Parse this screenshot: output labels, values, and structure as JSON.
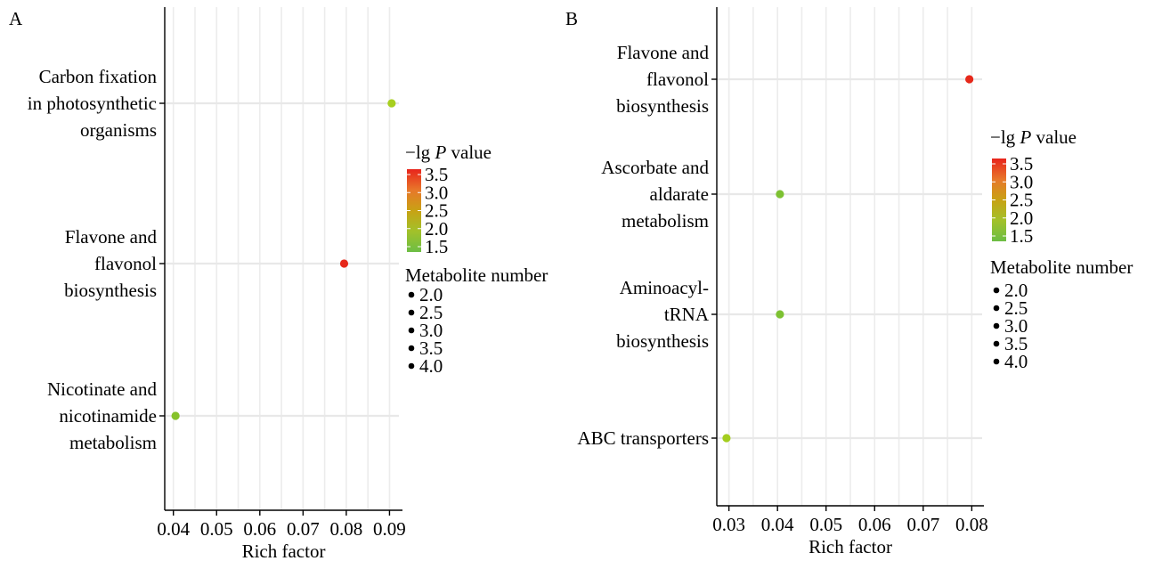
{
  "chart_data": [
    {
      "type": "scatter",
      "panel_label": "A",
      "title": "",
      "xlabel": "Rich factor",
      "ylabel": "",
      "xlim": [
        0.038,
        0.093
      ],
      "xticks": [
        0.04,
        0.05,
        0.06,
        0.07,
        0.08,
        0.09
      ],
      "xtick_labels": [
        "0.04",
        "0.05",
        "0.06",
        "0.07",
        "0.08",
        "0.09"
      ],
      "categories": [
        [
          "Carbon fixation",
          "in photosynthetic",
          "organisms"
        ],
        [
          "Flavone and",
          "flavonol",
          "biosynthesis"
        ],
        [
          "Nicotinate and",
          "nicotinamide",
          "metabolism"
        ]
      ],
      "points": [
        {
          "category": 0,
          "x": 0.0905,
          "neg_lg_p": 2.05,
          "color": "#a7cf1f"
        },
        {
          "category": 1,
          "x": 0.0795,
          "neg_lg_p": 3.6,
          "color": "#e6281a"
        },
        {
          "category": 2,
          "x": 0.0405,
          "neg_lg_p": 1.7,
          "color": "#86c22a"
        }
      ],
      "grid": true,
      "colorbar": {
        "title_prefix": "−lg ",
        "title_italic": "P",
        "title_suffix": " value",
        "ticks": [
          "3.5",
          "3.0",
          "2.5",
          "2.0",
          "1.5"
        ],
        "colors": [
          "#e8241c",
          "#e8772a",
          "#c8a214",
          "#a2c12a",
          "#6cbe45"
        ]
      },
      "size_legend": {
        "title": "Metabolite number",
        "entries": [
          "2.0",
          "2.5",
          "3.0",
          "3.5",
          "4.0"
        ]
      }
    },
    {
      "type": "scatter",
      "panel_label": "B",
      "title": "",
      "xlabel": "Rich factor",
      "ylabel": "",
      "xlim": [
        0.0275,
        0.0825
      ],
      "xticks": [
        0.03,
        0.04,
        0.05,
        0.06,
        0.07,
        0.08
      ],
      "xtick_labels": [
        "0.03",
        "0.04",
        "0.05",
        "0.06",
        "0.07",
        "0.08"
      ],
      "categories": [
        [
          "Flavone and",
          "flavonol",
          "biosynthesis"
        ],
        [
          "Ascorbate and",
          "aldarate",
          "metabolism"
        ],
        [
          "Aminoacyl-",
          "tRNA",
          "biosynthesis"
        ],
        [
          "ABC transporters"
        ]
      ],
      "points": [
        {
          "category": 0,
          "x": 0.0795,
          "neg_lg_p": 3.6,
          "color": "#e6281a"
        },
        {
          "category": 1,
          "x": 0.0405,
          "neg_lg_p": 1.6,
          "color": "#7dc132"
        },
        {
          "category": 2,
          "x": 0.0405,
          "neg_lg_p": 1.6,
          "color": "#7dc132"
        },
        {
          "category": 3,
          "x": 0.0295,
          "neg_lg_p": 2.0,
          "color": "#a3cd1e"
        }
      ],
      "grid": true,
      "colorbar": {
        "title_prefix": "−lg ",
        "title_italic": "P",
        "title_suffix": " value",
        "ticks": [
          "3.5",
          "3.0",
          "2.5",
          "2.0",
          "1.5"
        ],
        "colors": [
          "#e8241c",
          "#e8772a",
          "#c8a214",
          "#a2c12a",
          "#6cbe45"
        ]
      },
      "size_legend": {
        "title": "Metabolite number",
        "entries": [
          "2.0",
          "2.5",
          "3.0",
          "3.5",
          "4.0"
        ]
      }
    }
  ]
}
